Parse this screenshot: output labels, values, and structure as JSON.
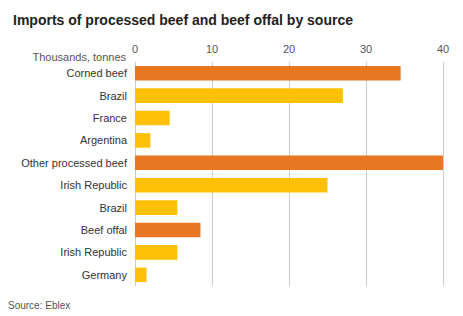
{
  "chart_data": {
    "type": "bar",
    "orientation": "horizontal",
    "title": "Imports of processed beef and beef offal by source",
    "xlabel": "Thousands, tonnes",
    "annotations": [
      "Source: Eblex"
    ],
    "categories": [
      "Germany",
      "Irish Republic",
      "Beef offal",
      "Brazil",
      "Irish Republic",
      "Other processed beef",
      "Argentina",
      "France",
      "Brazil",
      "Corned beef"
    ],
    "values": [
      1.5,
      5.5,
      8.5,
      5.5,
      25.0,
      40.0,
      2.0,
      4.5,
      27.0,
      34.5
    ],
    "colors": [
      "#FFC107",
      "#FFC107",
      "#E87722",
      "#FFC107",
      "#FFC107",
      "#E87722",
      "#FFC107",
      "#FFC107",
      "#FFC107",
      "#E87722"
    ],
    "xlim": [
      0,
      40
    ],
    "xticks": [
      0,
      10,
      20,
      30,
      40
    ],
    "grid": true
  }
}
